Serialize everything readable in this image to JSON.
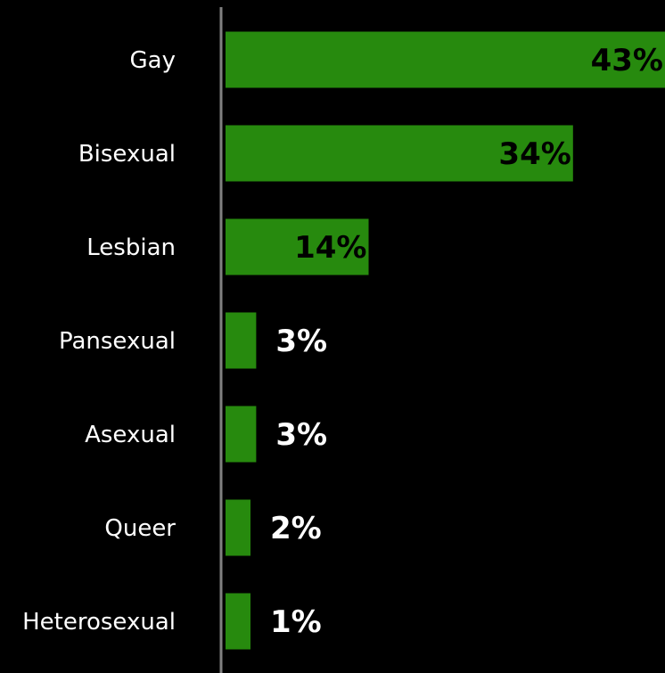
{
  "chart_data": {
    "type": "bar",
    "orientation": "horizontal",
    "categories": [
      "Gay",
      "Bisexual",
      "Lesbian",
      "Pansexual",
      "Asexual",
      "Queer",
      "Heterosexual"
    ],
    "values": [
      43,
      34,
      14,
      3,
      3,
      2,
      1
    ],
    "value_labels": [
      "43%",
      "34%",
      "14%",
      "3%",
      "3%",
      "2%",
      "1%"
    ],
    "title": "",
    "xlabel": "",
    "ylabel": "",
    "xlim": [
      0,
      43
    ],
    "grid": false,
    "legend": "none"
  },
  "colors": {
    "background": "#000000",
    "bar": "#278a0e",
    "axis": "#808080",
    "category_text": "#ffffff",
    "value_text_inside": "#000000",
    "value_text_outside": "#ffffff"
  }
}
